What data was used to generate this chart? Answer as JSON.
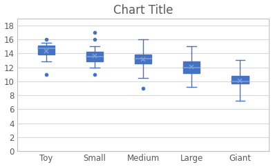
{
  "title": "Chart Title",
  "categories": [
    "Toy",
    "Small",
    "Medium",
    "Large",
    "Giant"
  ],
  "boxes": [
    {
      "q1": 13.8,
      "median": 14.7,
      "q3": 15.1,
      "whisker_low": 12.8,
      "whisker_high": 15.5,
      "mean": 14.3,
      "outliers": [
        16.0,
        11.0
      ]
    },
    {
      "q1": 12.8,
      "median": 13.5,
      "q3": 14.2,
      "whisker_low": 12.0,
      "whisker_high": 15.0,
      "mean": 13.6,
      "outliers": [
        16.0,
        17.0,
        11.0
      ]
    },
    {
      "q1": 12.5,
      "median": 13.2,
      "q3": 13.8,
      "whisker_low": 10.5,
      "whisker_high": 16.0,
      "mean": 13.1,
      "outliers": [
        9.0
      ]
    },
    {
      "q1": 11.2,
      "median": 12.0,
      "q3": 12.8,
      "whisker_low": 9.2,
      "whisker_high": 15.0,
      "mean": 12.1,
      "outliers": []
    },
    {
      "q1": 9.7,
      "median": 10.0,
      "q3": 10.8,
      "whisker_low": 7.2,
      "whisker_high": 13.0,
      "mean": 10.1,
      "outliers": []
    }
  ],
  "ylim": [
    0,
    19
  ],
  "yticks": [
    0,
    2,
    4,
    6,
    8,
    10,
    12,
    14,
    16,
    18
  ],
  "box_color": "#4472c4",
  "box_face_color": "#4472c4",
  "median_color": "#7f9fd4",
  "whisker_color": "#4472c4",
  "mean_marker_color": "#7f9fd4",
  "outlier_color": "#4472c4",
  "title_color": "#595959",
  "tick_label_color": "#595959",
  "background_color": "#ffffff",
  "plot_bg_color": "#ffffff",
  "grid_color": "#d9d9d9",
  "box_width": 0.35,
  "title_fontsize": 12,
  "tick_fontsize": 8.5
}
